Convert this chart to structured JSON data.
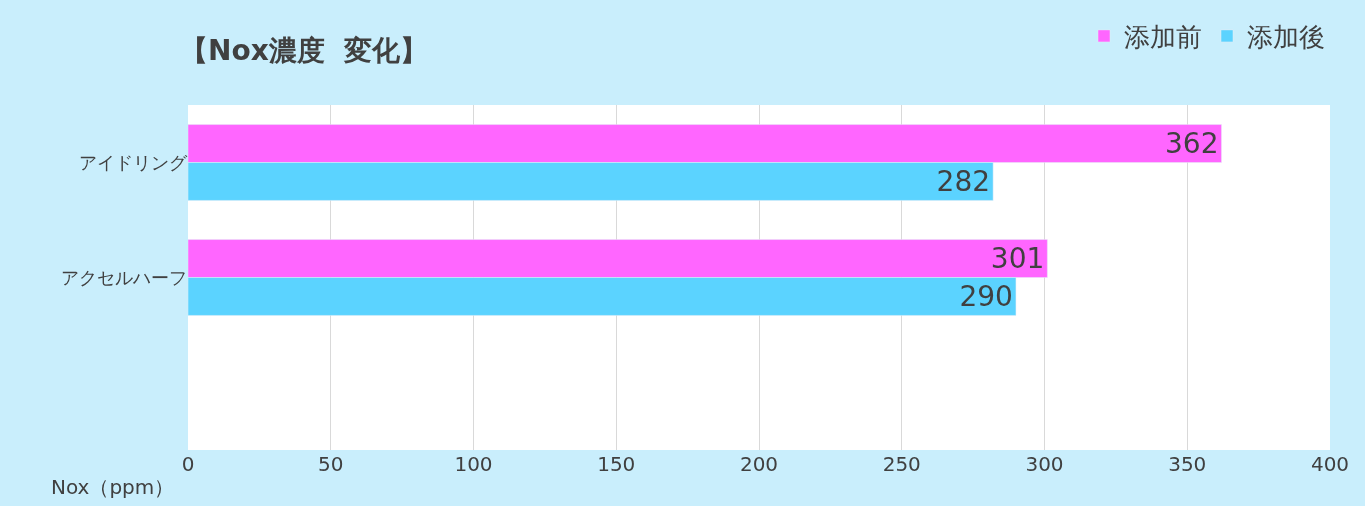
{
  "chart_data": {
    "type": "bar",
    "orientation": "horizontal",
    "title": "【Nox濃度  変化】",
    "xlabel": "Nox（ppm）",
    "categories": [
      "アイドリング",
      "アクセルハーフ",
      null
    ],
    "series": [
      {
        "name": "添加前",
        "color": "#ff66ff",
        "values": [
          362,
          301,
          null
        ]
      },
      {
        "name": "添加後",
        "color": "#5bd3ff",
        "values": [
          282,
          290,
          null
        ]
      }
    ],
    "xlim": [
      0,
      400
    ],
    "xticks": [
      0,
      50,
      100,
      150,
      200,
      250,
      300,
      350,
      400
    ],
    "grid": "x",
    "legend": "top right",
    "data_labels": true
  }
}
